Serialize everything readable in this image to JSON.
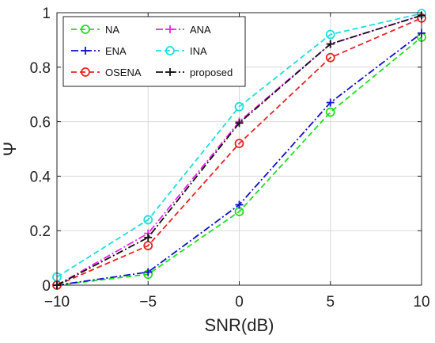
{
  "chart_data": {
    "type": "line",
    "x": [
      -10,
      -5,
      0,
      5,
      10
    ],
    "xlabel": "SNR(dB)",
    "ylabel": "Ψ",
    "xlim": [
      -10,
      10
    ],
    "ylim": [
      0,
      1
    ],
    "xticks": [
      -10,
      -5,
      0,
      5,
      10
    ],
    "xtick_labels": [
      "−10",
      "−5",
      "0",
      "5",
      "10"
    ],
    "yticks": [
      0,
      0.2,
      0.4,
      0.6,
      0.8,
      1
    ],
    "ytick_labels": [
      "0",
      "0.2",
      "0.4",
      "0.6",
      "0.8",
      "1"
    ],
    "grid": true,
    "legend_position": "top-left",
    "series": [
      {
        "name": "NA",
        "values": [
          0.0,
          0.04,
          0.27,
          0.635,
          0.91
        ],
        "color": "#22dd22",
        "marker": "circle",
        "dash": "dashed"
      },
      {
        "name": "ANA",
        "values": [
          0.0,
          0.19,
          0.6,
          0.885,
          0.99
        ],
        "color": "#ee22ee",
        "marker": "plus",
        "dash": "dashdot"
      },
      {
        "name": "ENA",
        "values": [
          0.0,
          0.048,
          0.295,
          0.67,
          0.925
        ],
        "color": "#1111cc",
        "marker": "plus",
        "dash": "dashdot"
      },
      {
        "name": "INA",
        "values": [
          0.03,
          0.24,
          0.655,
          0.92,
          0.997
        ],
        "color": "#22dddd",
        "marker": "circle",
        "dash": "dashed"
      },
      {
        "name": "OSENA",
        "values": [
          0.0,
          0.145,
          0.52,
          0.835,
          0.98
        ],
        "color": "#ee2222",
        "marker": "circle",
        "dash": "dashed"
      },
      {
        "name": "proposed",
        "values": [
          0.0,
          0.175,
          0.595,
          0.885,
          0.99
        ],
        "color": "#111111",
        "marker": "plus",
        "dash": "dashdot"
      }
    ]
  }
}
